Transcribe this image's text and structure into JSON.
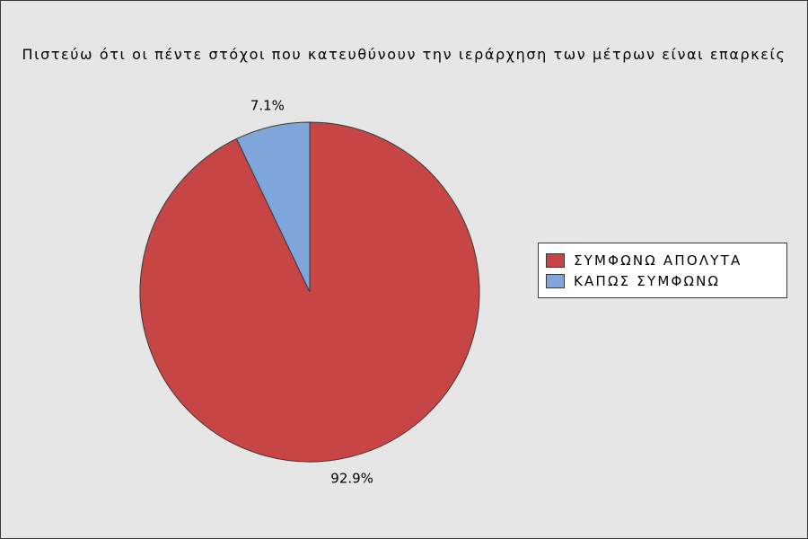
{
  "chart_data": {
    "type": "pie",
    "title": "Πιστεύω ότι οι πέντε στόχοι που κατευθύνουν την ιεράρχηση των μέτρων είναι επαρκείς",
    "legend_position": "right",
    "slices": [
      {
        "name": "ΣΥΜΦΩΝΩ ΑΠΟΛΥΤΑ",
        "value": 92.9,
        "label": "92.9%",
        "color": "#c84546"
      },
      {
        "name": "ΚΑΠΩΣ ΣΥΜΦΩΝΩ",
        "value": 7.1,
        "label": "7.1%",
        "color": "#7ea6da"
      }
    ],
    "start_angle_deg": 0,
    "direction": "clockwise"
  }
}
